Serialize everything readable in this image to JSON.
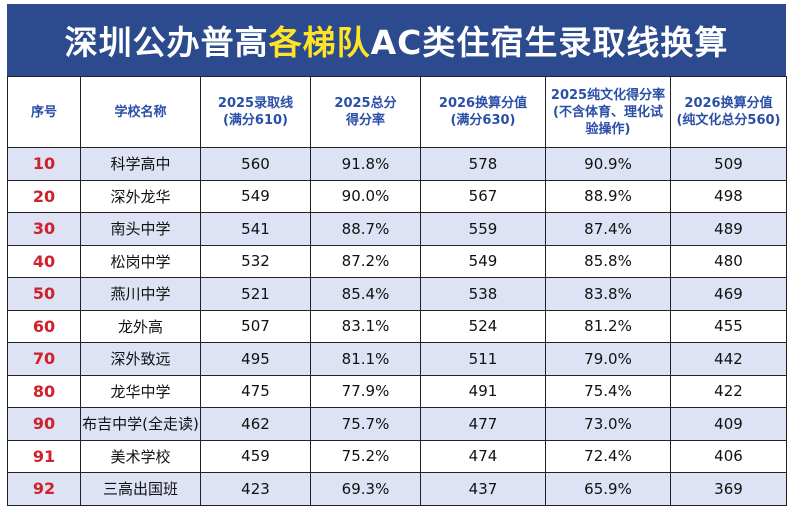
{
  "header": {
    "title_parts": [
      "深圳公办普高",
      "各梯队",
      "AC类住宿生录取线换算"
    ]
  },
  "table": {
    "columns": [
      [
        "序号"
      ],
      [
        "学校名称"
      ],
      [
        "2025录取线",
        "(满分610)"
      ],
      [
        "2025总分",
        "得分率"
      ],
      [
        "2026换算分值",
        "(满分630)"
      ],
      [
        "2025纯文化得分率",
        "(不含体育、理化试",
        "验操作)"
      ],
      [
        "2026换算分值",
        "(纯文化总分560)"
      ]
    ],
    "rows": [
      [
        "10",
        "科学高中",
        "560",
        "91.8%",
        "578",
        "90.9%",
        "509"
      ],
      [
        "20",
        "深外龙华",
        "549",
        "90.0%",
        "567",
        "88.9%",
        "498"
      ],
      [
        "30",
        "南头中学",
        "541",
        "88.7%",
        "559",
        "87.4%",
        "489"
      ],
      [
        "40",
        "松岗中学",
        "532",
        "87.2%",
        "549",
        "85.8%",
        "480"
      ],
      [
        "50",
        "燕川中学",
        "521",
        "85.4%",
        "538",
        "83.8%",
        "469"
      ],
      [
        "60",
        "龙外高",
        "507",
        "83.1%",
        "524",
        "81.2%",
        "455"
      ],
      [
        "70",
        "深外致远",
        "495",
        "81.1%",
        "511",
        "79.0%",
        "442"
      ],
      [
        "80",
        "龙华中学",
        "475",
        "77.9%",
        "491",
        "75.4%",
        "422"
      ],
      [
        "90",
        "布吉中学(全走读)",
        "462",
        "75.7%",
        "477",
        "73.0%",
        "409"
      ],
      [
        "91",
        "美术学校",
        "459",
        "75.2%",
        "474",
        "72.4%",
        "406"
      ],
      [
        "92",
        "三高出国班",
        "423",
        "69.3%",
        "437",
        "65.9%",
        "369"
      ]
    ]
  }
}
